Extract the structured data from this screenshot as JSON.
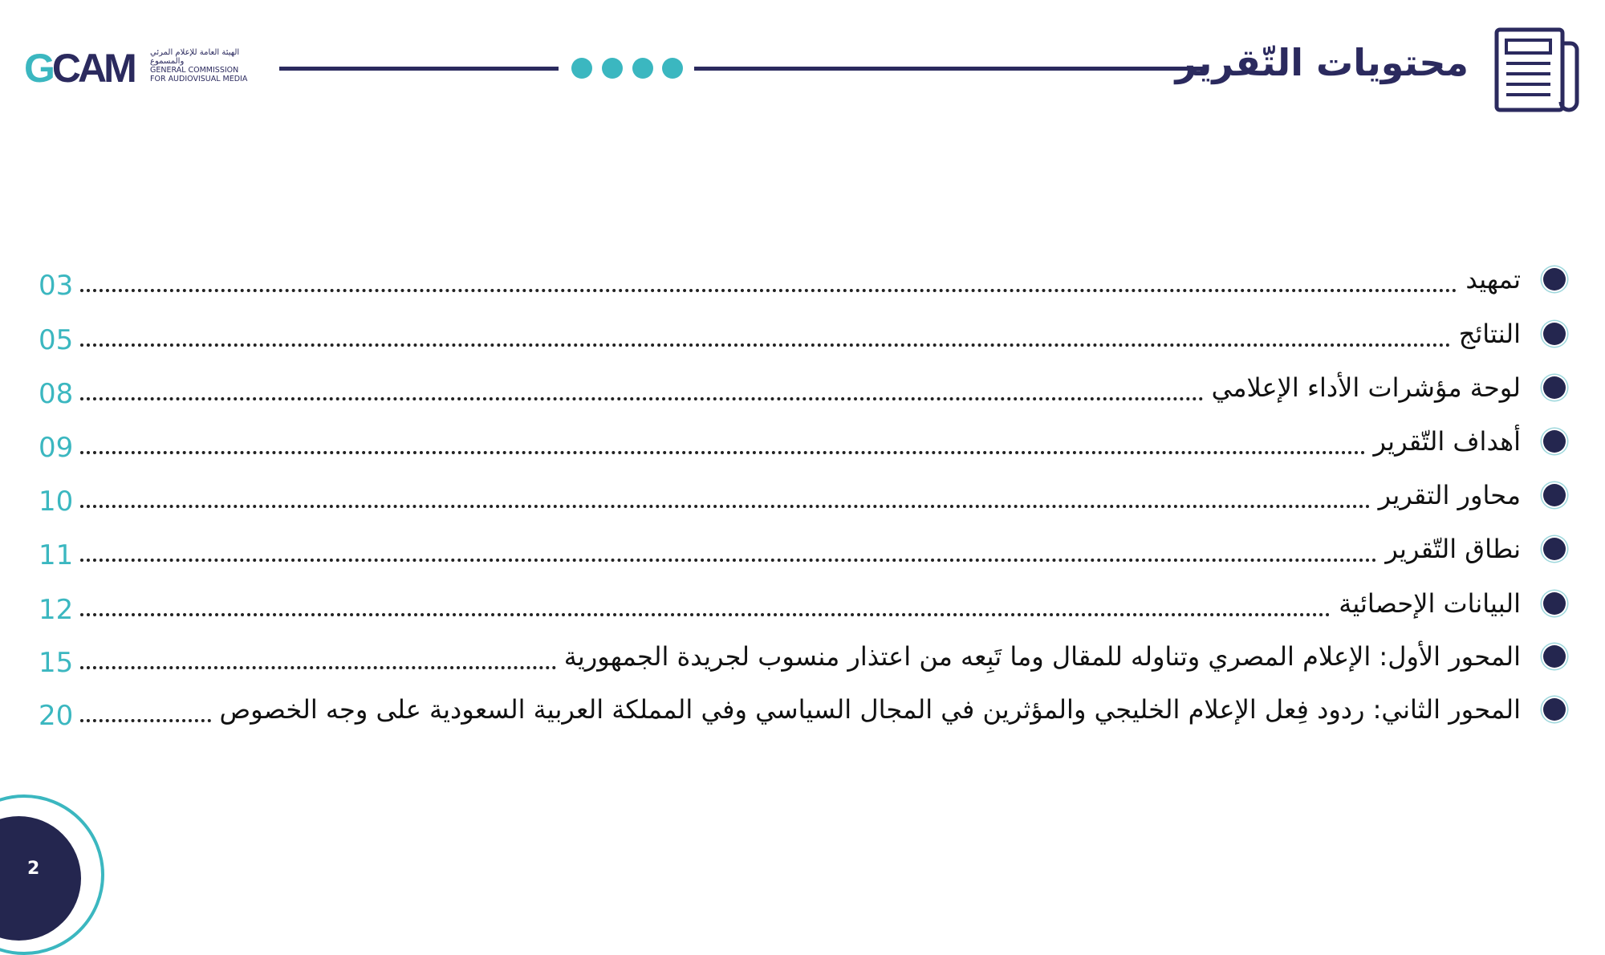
{
  "header": {
    "title": "محتويات التّقرير",
    "logo": {
      "mark": "GCAM",
      "arabic_name": "الهيئة العامة للإعلام المرئي والمسموع",
      "english_line1": "GENERAL COMMISSION",
      "english_line2": "FOR AUDIOVISUAL MEDIA"
    },
    "icon": "document-icon",
    "colors": {
      "navy": "#2b2a5e",
      "teal": "#3bb7c0"
    }
  },
  "toc": [
    {
      "label": "تمهيد",
      "page": "03"
    },
    {
      "label": "النتائج",
      "page": "05"
    },
    {
      "label": "لوحة مؤشرات الأداء الإعلامي",
      "page": "08"
    },
    {
      "label": "أهداف التّقرير",
      "page": "09"
    },
    {
      "label": "محاور التقرير",
      "page": "10"
    },
    {
      "label": "نطاق التّقرير",
      "page": "11"
    },
    {
      "label": "البيانات الإحصائية",
      "page": "12"
    },
    {
      "label": "المحور الأول: الإعلام المصري وتناوله للمقال وما تَبِعه من اعتذار منسوب لجريدة الجمهورية",
      "page": "15"
    },
    {
      "label": "المحور الثاني: ردود فِعل الإعلام الخليجي والمؤثرين في المجال السياسي وفي المملكة العربية السعودية على وجه الخصوص",
      "page": "20"
    }
  ],
  "footer": {
    "page_number": "2"
  }
}
